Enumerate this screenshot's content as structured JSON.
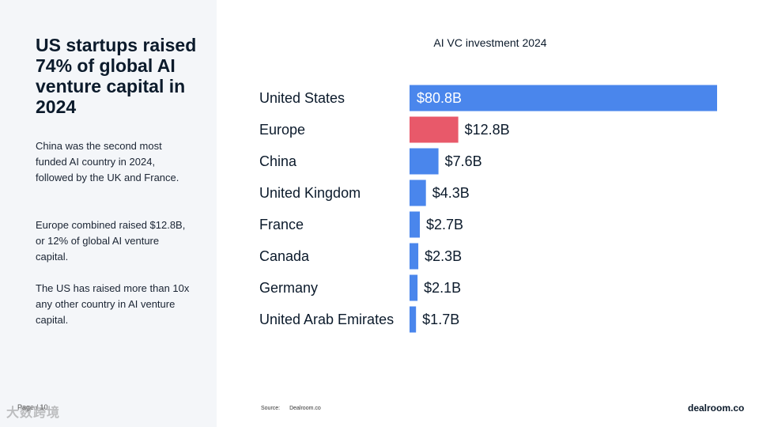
{
  "sidebar": {
    "headline": "US startups raised 74% of global AI venture capital in 2024",
    "paragraphs": [
      "China was the second most funded AI country in 2024, followed by the UK and France.",
      "Europe combined raised $12.8B, or 12% of global AI venture capital.",
      "The US has raised more than 10x any other country in AI venture capital."
    ],
    "page_label": "Page / 10",
    "watermark_text": "大数跨境"
  },
  "footer": {
    "source_label": "Source:",
    "source_value": "Dealroom.co",
    "brand": "dealroom.co"
  },
  "colors": {
    "primary_bar": "#4a86ec",
    "highlight_bar": "#e8596a",
    "sidebar_bg": "#f4f6f9"
  },
  "chart_data": {
    "type": "bar",
    "orientation": "horizontal",
    "title": "AI VC investment 2024",
    "categories": [
      "United States",
      "Europe",
      "China",
      "United Kingdom",
      "France",
      "Canada",
      "Germany",
      "United Arab Emirates"
    ],
    "values": [
      80.8,
      12.8,
      7.6,
      4.3,
      2.7,
      2.3,
      2.1,
      1.7
    ],
    "value_labels": [
      "$80.8B",
      "$12.8B",
      "$7.6B",
      "$4.3B",
      "$2.7B",
      "$2.3B",
      "$2.1B",
      "$1.7B"
    ],
    "highlight_category": "Europe",
    "unit": "USD billions",
    "grid": false,
    "legend": false
  }
}
